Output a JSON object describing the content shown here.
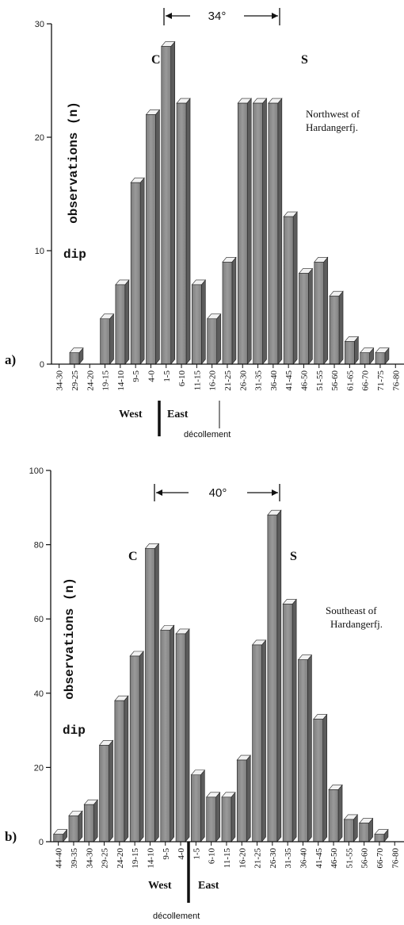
{
  "chart_data": [
    {
      "panel": "a)",
      "type": "bar",
      "title": "",
      "ylabel_line1": "observations (n)",
      "ylabel_line2": "dip",
      "ylim": [
        0,
        30
      ],
      "yticks": [
        0,
        10,
        20,
        30
      ],
      "annotation": [
        "Northwest of",
        "Hardangerfj."
      ],
      "peaks": {
        "left": "C",
        "right": "S"
      },
      "separation": "34°",
      "direction_left": "West",
      "direction_right": "East",
      "boundary_label": "décollement",
      "categories": [
        "34-30",
        "29-25",
        "24-20",
        "19-15",
        "14-10",
        "9-5",
        "4-0",
        "1-5",
        "6-10",
        "11-15",
        "16-20",
        "21-25",
        "26-30",
        "31-35",
        "36-40",
        "41-45",
        "46-50",
        "51-55",
        "56-60",
        "61-65",
        "66-70",
        "71-75",
        "76-80"
      ],
      "values": [
        0,
        1,
        0,
        4,
        7,
        16,
        22,
        28,
        23,
        7,
        4,
        9,
        23,
        23,
        23,
        13,
        8,
        9,
        6,
        2,
        1,
        1,
        0
      ],
      "west_count": 7
    },
    {
      "panel": "b)",
      "type": "bar",
      "title": "",
      "ylabel_line1": "observations (n)",
      "ylabel_line2": "dip",
      "ylim": [
        0,
        100
      ],
      "yticks": [
        0,
        20,
        40,
        60,
        80,
        100
      ],
      "annotation": [
        "Southeast of",
        "Hardangerfj."
      ],
      "peaks": {
        "left": "C",
        "right": "S"
      },
      "separation": "40°",
      "direction_left": "West",
      "direction_right": "East",
      "boundary_label": "décollement",
      "categories": [
        "44-40",
        "39-35",
        "34-30",
        "29-25",
        "24-20",
        "19-15",
        "14-10",
        "9-5",
        "4-0",
        "1-5",
        "6-10",
        "11-15",
        "16-20",
        "21-25",
        "26-30",
        "31-35",
        "36-40",
        "41-45",
        "46-50",
        "51-55",
        "56-60",
        "66-70",
        "76-80"
      ],
      "values": [
        2,
        7,
        10,
        26,
        38,
        50,
        79,
        57,
        56,
        18,
        12,
        12,
        22,
        53,
        88,
        64,
        49,
        33,
        14,
        6,
        5,
        2,
        0
      ],
      "west_count": 9
    }
  ]
}
